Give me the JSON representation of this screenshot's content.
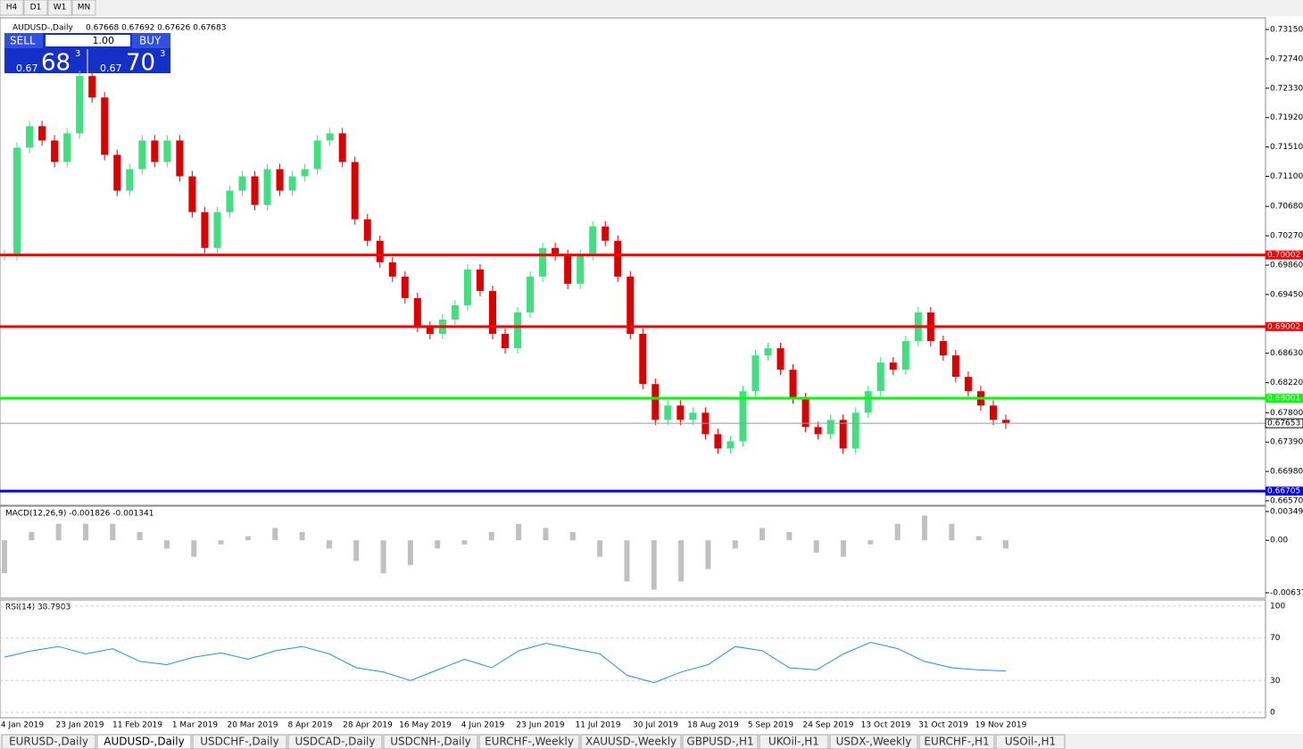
{
  "toolbar": {
    "timeframes": [
      "H4",
      "D1",
      "W1",
      "MN"
    ]
  },
  "header": {
    "symbol": "AUDUSD-,Daily",
    "ohlc": "0.67668 0.67692 0.67626 0.67683"
  },
  "trade_panel": {
    "sell": "SELL",
    "buy": "BUY",
    "lot": "1.00",
    "sell_price": {
      "prefix": "0.67",
      "big": "68",
      "sup": "3"
    },
    "buy_price": {
      "prefix": "0.67",
      "big": "70",
      "sup": "3"
    }
  },
  "price_axis": {
    "range": [
      0.6657,
      0.7315
    ],
    "ticks": [
      {
        "value": 0.7315,
        "label": "0.73150"
      },
      {
        "value": 0.7274,
        "label": "0.72740"
      },
      {
        "value": 0.7233,
        "label": "0.72330"
      },
      {
        "value": 0.7192,
        "label": "0.71920"
      },
      {
        "value": 0.7151,
        "label": "0.71510"
      },
      {
        "value": 0.711,
        "label": "0.71100"
      },
      {
        "value": 0.7068,
        "label": "0.70680"
      },
      {
        "value": 0.7027,
        "label": "0.70270"
      },
      {
        "value": 0.6986,
        "label": "0.69860"
      },
      {
        "value": 0.6945,
        "label": "0.69450"
      },
      {
        "value": 0.6863,
        "label": "0.68630"
      },
      {
        "value": 0.6822,
        "label": "0.68220"
      },
      {
        "value": 0.678,
        "label": "0.67800"
      },
      {
        "value": 0.6739,
        "label": "0.67390"
      },
      {
        "value": 0.6698,
        "label": "0.66980"
      },
      {
        "value": 0.6657,
        "label": "0.66570"
      }
    ]
  },
  "levels": [
    {
      "value": 0.70002,
      "label": "0.70002",
      "color": "#ff0000"
    },
    {
      "value": 0.69002,
      "label": "0.69002",
      "color": "#ff0000"
    },
    {
      "value": 0.68001,
      "label": "0.68001",
      "color": "#00ff00"
    },
    {
      "value": 0.66705,
      "label": "0.66705",
      "color": "#0000ff"
    }
  ],
  "current_price": {
    "value": 0.67653,
    "label": "0.67653"
  },
  "closes": [
    0.7,
    0.715,
    0.718,
    0.716,
    0.713,
    0.717,
    0.725,
    0.722,
    0.714,
    0.709,
    0.712,
    0.716,
    0.713,
    0.716,
    0.711,
    0.706,
    0.701,
    0.706,
    0.709,
    0.711,
    0.707,
    0.712,
    0.709,
    0.711,
    0.712,
    0.716,
    0.717,
    0.713,
    0.705,
    0.702,
    0.699,
    0.697,
    0.694,
    0.69,
    0.689,
    0.691,
    0.693,
    0.698,
    0.695,
    0.689,
    0.687,
    0.692,
    0.697,
    0.701,
    0.7,
    0.696,
    0.7,
    0.704,
    0.702,
    0.697,
    0.689,
    0.682,
    0.677,
    0.679,
    0.677,
    0.678,
    0.675,
    0.673,
    0.674,
    0.681,
    0.686,
    0.687,
    0.684,
    0.68,
    0.676,
    0.675,
    0.677,
    0.673,
    0.678,
    0.681,
    0.685,
    0.684,
    0.688,
    0.692,
    0.688,
    0.686,
    0.683,
    0.681,
    0.679,
    0.677,
    0.6765
  ],
  "macd": {
    "label": "MACD(12,26,9) -0.001826 -0.001341",
    "range": [
      -0.00637,
      0.00349
    ],
    "ticks": [
      {
        "value": 0.00349,
        "label": "0.00349"
      },
      {
        "value": 0,
        "label": "0.00"
      },
      {
        "value": -0.00637,
        "label": "-0.00637"
      }
    ],
    "histogram": [
      -0.004,
      0.001,
      0.002,
      0.002,
      0.002,
      0.001,
      -0.001,
      -0.002,
      -0.0005,
      0.0005,
      0.0015,
      0.001,
      -0.001,
      -0.0025,
      -0.004,
      -0.003,
      -0.001,
      -0.0005,
      0.001,
      0.002,
      0.0015,
      0.001,
      -0.002,
      -0.005,
      -0.006,
      -0.005,
      -0.0035,
      -0.001,
      0.0015,
      0.001,
      -0.0015,
      -0.002,
      -0.0005,
      0.002,
      0.003,
      0.002,
      0.0005,
      -0.001
    ]
  },
  "rsi": {
    "label": "RSI(14) 38.7903",
    "range": [
      0,
      100
    ],
    "ticks": [
      100,
      70,
      30,
      0
    ],
    "values": [
      52,
      58,
      62,
      55,
      60,
      48,
      45,
      52,
      56,
      50,
      58,
      62,
      55,
      42,
      38,
      30,
      40,
      50,
      42,
      58,
      65,
      60,
      55,
      35,
      28,
      38,
      45,
      62,
      58,
      42,
      40,
      55,
      66,
      60,
      48,
      42,
      40,
      39
    ]
  },
  "dates": [
    "4 Jan 2019",
    "23 Jan 2019",
    "11 Feb 2019",
    "1 Mar 2019",
    "20 Mar 2019",
    "8 Apr 2019",
    "28 Apr 2019",
    "16 May 2019",
    "4 Jun 2019",
    "23 Jun 2019",
    "11 Jul 2019",
    "30 Jul 2019",
    "18 Aug 2019",
    "5 Sep 2019",
    "24 Sep 2019",
    "13 Oct 2019",
    "31 Oct 2019",
    "19 Nov 2019"
  ],
  "tabs": [
    "EURUSD-,Daily",
    "AUDUSD-,Daily",
    "USDCHF-,Daily",
    "USDCAD-,Daily",
    "USDCNH-,Daily",
    "EURCHF-,Weekly",
    "XAUUSD-,Weekly",
    "GBPUSD-,H1",
    "UKOil-,H1",
    "USDX-,Weekly",
    "EURCHF-,H1",
    "USOil-,H1"
  ],
  "active_tab": "AUDUSD-,Daily"
}
